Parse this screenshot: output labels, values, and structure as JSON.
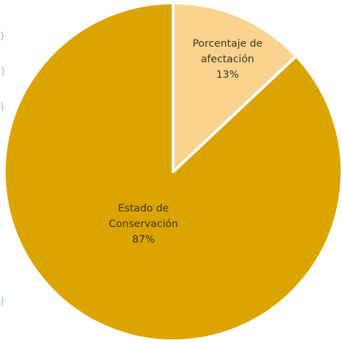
{
  "chart_data": {
    "type": "pie",
    "title": "",
    "start_angle_deg": 0,
    "direction": "clockwise",
    "series": [
      {
        "slices": [
          {
            "label_lines": [
              "Porcentaje de",
              "afectación"
            ],
            "value_label": "13%",
            "value": 13,
            "color": "#fad38f"
          },
          {
            "label_lines": [
              "Estado de",
              "Conservación"
            ],
            "value_label": "87%",
            "value": 87,
            "color": "#dca400"
          }
        ]
      }
    ],
    "slice_border_color": "#ffffff",
    "legend": "none"
  }
}
